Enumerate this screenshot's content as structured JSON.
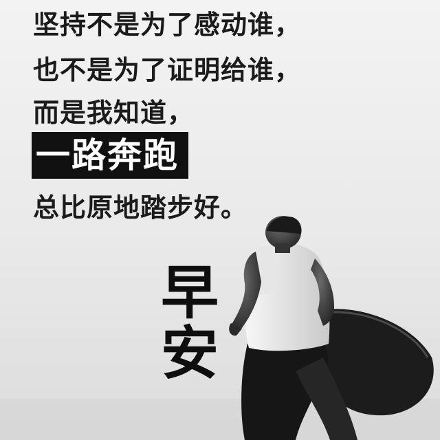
{
  "quote": {
    "line1": "坚持不是为了感动谁，",
    "line2": "也不是为了证明给谁，",
    "line3": "而是我知道，",
    "line4_highlight": "一路奔跑",
    "line5": "总比原地踏步好。"
  },
  "greeting": {
    "char1": "早",
    "char2": "安"
  },
  "colors": {
    "background": "#ededed",
    "text": "#1b1b1b",
    "highlight_bg": "#111111",
    "highlight_text": "#ffffff"
  }
}
